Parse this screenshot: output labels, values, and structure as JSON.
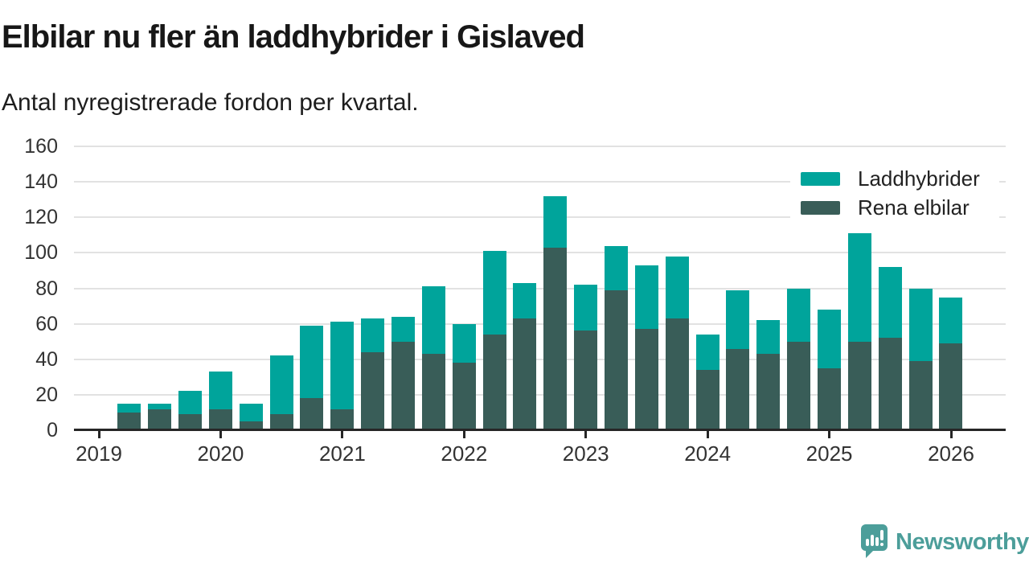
{
  "header": {
    "title": "Elbilar nu fler än laddhybrider i Gislaved",
    "subtitle": "Antal nyregistrerade fordon per kvartal."
  },
  "legend": {
    "items": [
      {
        "label": "Laddhybrider",
        "color": "#00a49b"
      },
      {
        "label": "Rena elbilar",
        "color": "#395d58"
      }
    ]
  },
  "footer": {
    "brand": "Newsworthy",
    "brand_color": "#4c9e9a"
  },
  "colors": {
    "laddhybrider": "#00a49b",
    "rena_elbilar": "#395d58",
    "gridline": "#e2e2e2",
    "axis": "#262626",
    "tick_text": "#333333"
  },
  "chart_data": {
    "type": "bar",
    "stacked": true,
    "title": "Elbilar nu fler än laddhybrider i Gislaved",
    "subtitle": "Antal nyregistrerade fordon per kvartal.",
    "xlabel": "",
    "ylabel": "",
    "ylim": [
      0,
      160
    ],
    "yticks": [
      0,
      20,
      40,
      60,
      80,
      100,
      120,
      140,
      160
    ],
    "year_labels": [
      "2019",
      "2020",
      "2021",
      "2022",
      "2023",
      "2024",
      "2025",
      "2026"
    ],
    "grid": true,
    "legend_position": "top-right",
    "categories": [
      "2019 Q2",
      "2019 Q3",
      "2019 Q4",
      "2020 Q1",
      "2020 Q2",
      "2020 Q3",
      "2020 Q4",
      "2021 Q1",
      "2021 Q2",
      "2021 Q3",
      "2021 Q4",
      "2022 Q1",
      "2022 Q2",
      "2022 Q3",
      "2022 Q4",
      "2023 Q1",
      "2023 Q2",
      "2023 Q3",
      "2023 Q4",
      "2024 Q1",
      "2024 Q2",
      "2024 Q3",
      "2024 Q4",
      "2025 Q1",
      "2025 Q2",
      "2025 Q3",
      "2025 Q4",
      "2026 Q1"
    ],
    "series": [
      {
        "name": "Rena elbilar",
        "color": "#395d58",
        "values": [
          10,
          12,
          9,
          12,
          5,
          9,
          18,
          12,
          44,
          50,
          43,
          38,
          54,
          63,
          103,
          56,
          79,
          57,
          63,
          34,
          46,
          43,
          50,
          35,
          50,
          52,
          39,
          49
        ]
      },
      {
        "name": "Laddhybrider",
        "color": "#00a49b",
        "values": [
          5,
          3,
          13,
          21,
          10,
          33,
          41,
          49,
          19,
          14,
          38,
          22,
          47,
          20,
          29,
          26,
          25,
          36,
          35,
          20,
          33,
          19,
          30,
          33,
          61,
          40,
          41,
          26
        ]
      }
    ]
  }
}
